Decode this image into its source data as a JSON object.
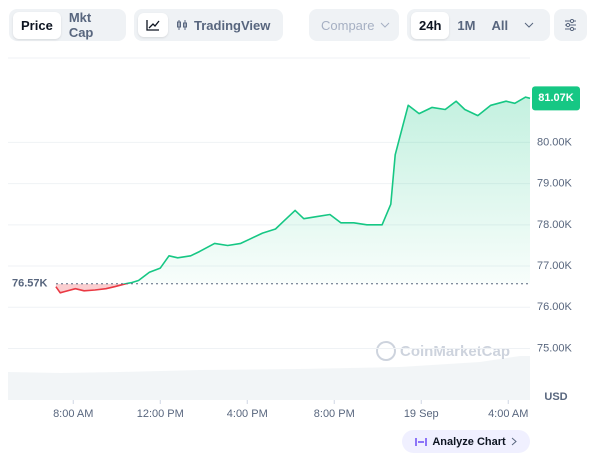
{
  "toolbar": {
    "price": "Price",
    "mkt_cap": "Mkt Cap",
    "tradingview": "TradingView",
    "compare": "Compare",
    "range_24h": "24h",
    "range_1m": "1M",
    "range_all": "All"
  },
  "chart_data": {
    "type": "line",
    "x": [
      7.2,
      7.4,
      7.6,
      8.1,
      8.5,
      9.0,
      9.5,
      9.9,
      10.4,
      10.7,
      11.0,
      11.5,
      12.0,
      12.4,
      12.8,
      13.4,
      13.8,
      14.5,
      15.1,
      15.7,
      16.1,
      16.7,
      17.3,
      17.7,
      18.2,
      18.6,
      19.2,
      19.8,
      20.3,
      20.9,
      21.5,
      22.2,
      22.6,
      22.8,
      23.0,
      23.4,
      23.9,
      24.5,
      25.1,
      25.6,
      26.0,
      26.6,
      27.2,
      27.9,
      28.3,
      28.8,
      29.0
    ],
    "series": [
      {
        "name": "Price",
        "color": "#16c784",
        "values": [
          76500,
          76350,
          76380,
          76450,
          76400,
          76420,
          76450,
          76500,
          76570,
          76600,
          76650,
          76850,
          76950,
          77250,
          77200,
          77250,
          77350,
          77550,
          77500,
          77550,
          77650,
          77800,
          77900,
          78100,
          78350,
          78150,
          78200,
          78250,
          78050,
          78050,
          78000,
          78000,
          78500,
          79700,
          80100,
          80900,
          80700,
          80850,
          80800,
          81000,
          80800,
          80650,
          80900,
          81000,
          80950,
          81100,
          81070
        ]
      }
    ],
    "below_color": "#ea3943",
    "reference": {
      "value": 76570,
      "label": "76.57K"
    },
    "last_price": {
      "value": 81070,
      "label": "81.07K"
    },
    "xlim": [
      5,
      29
    ],
    "xticks": [
      {
        "value": 8,
        "label": "8:00 AM"
      },
      {
        "value": 12,
        "label": "12:00 PM"
      },
      {
        "value": 16,
        "label": "4:00 PM"
      },
      {
        "value": 20,
        "label": "8:00 PM"
      },
      {
        "value": 24,
        "label": "19 Sep"
      },
      {
        "value": 28,
        "label": "4:00 AM"
      }
    ],
    "ylim": [
      73750,
      82000
    ],
    "yticks": [
      {
        "value": 75000,
        "label": "75.00K"
      },
      {
        "value": 76000,
        "label": "76.00K"
      },
      {
        "value": 77000,
        "label": "77.00K"
      },
      {
        "value": 78000,
        "label": "78.00K"
      },
      {
        "value": 79000,
        "label": "79.00K"
      },
      {
        "value": 80000,
        "label": "80.00K"
      }
    ],
    "y_unit": "USD",
    "watermark": "CoinMarketCap",
    "grid": true
  },
  "footer": {
    "analyze": "Analyze Chart"
  }
}
